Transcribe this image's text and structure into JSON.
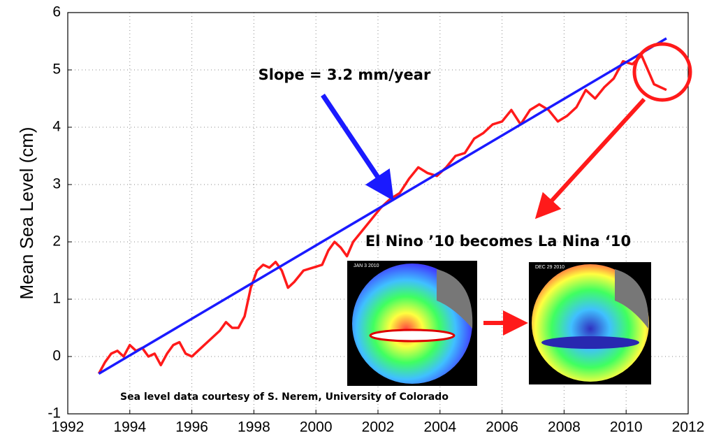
{
  "chart_data": {
    "type": "line",
    "ylabel": "Mean Sea Level (cm)",
    "annotations": [
      "Slope = 3.2 mm/year",
      "El Nino ’10 becomes La Nina ‘10",
      "Sea level data courtesy of S. Nerem, University of Colorado"
    ],
    "image_labels": [
      "JAN 3 2010",
      "DEC 29 2010"
    ],
    "xlim": [
      1992,
      2012
    ],
    "ylim": [
      -1,
      6
    ],
    "xticks": [
      1992,
      1994,
      1996,
      1998,
      2000,
      2002,
      2004,
      2006,
      2008,
      2010,
      2012
    ],
    "yticks": [
      -1,
      0,
      1,
      2,
      3,
      4,
      5,
      6
    ],
    "grid": true,
    "series": [
      {
        "color": "#ff1a1a",
        "x": [
          1993.0,
          1993.2,
          1993.4,
          1993.6,
          1993.8,
          1994.0,
          1994.2,
          1994.4,
          1994.6,
          1994.8,
          1995.0,
          1995.2,
          1995.4,
          1995.6,
          1995.8,
          1996.0,
          1996.3,
          1996.6,
          1996.9,
          1997.1,
          1997.3,
          1997.5,
          1997.7,
          1997.9,
          1998.1,
          1998.3,
          1998.5,
          1998.7,
          1998.9,
          1999.1,
          1999.3,
          1999.6,
          1999.9,
          2000.2,
          2000.4,
          2000.6,
          2000.8,
          2001.0,
          2001.2,
          2001.5,
          2001.8,
          2002.1,
          2002.4,
          2002.7,
          2003.0,
          2003.3,
          2003.6,
          2003.9,
          2004.2,
          2004.5,
          2004.8,
          2005.1,
          2005.4,
          2005.7,
          2006.0,
          2006.3,
          2006.6,
          2006.9,
          2007.2,
          2007.5,
          2007.8,
          2008.1,
          2008.4,
          2008.7,
          2009.0,
          2009.3,
          2009.6,
          2009.9,
          2010.2,
          2010.5,
          2010.7,
          2010.9,
          2011.1,
          2011.3
        ],
        "values": [
          -0.3,
          -0.1,
          0.05,
          0.1,
          0.0,
          0.2,
          0.1,
          0.15,
          0.0,
          0.05,
          -0.15,
          0.05,
          0.2,
          0.25,
          0.05,
          0.0,
          0.15,
          0.3,
          0.45,
          0.6,
          0.5,
          0.5,
          0.7,
          1.2,
          1.5,
          1.6,
          1.55,
          1.65,
          1.5,
          1.2,
          1.3,
          1.5,
          1.55,
          1.6,
          1.85,
          2.0,
          1.9,
          1.75,
          2.0,
          2.2,
          2.4,
          2.6,
          2.75,
          2.85,
          3.1,
          3.3,
          3.2,
          3.15,
          3.3,
          3.5,
          3.55,
          3.8,
          3.9,
          4.05,
          4.1,
          4.3,
          4.05,
          4.3,
          4.4,
          4.3,
          4.1,
          4.2,
          4.35,
          4.65,
          4.5,
          4.7,
          4.85,
          5.15,
          5.1,
          5.25,
          5.0,
          4.75,
          4.7,
          4.65
        ]
      },
      {
        "color": "#1a1aff",
        "x": [
          1993.0,
          2011.3
        ],
        "values": [
          -0.3,
          5.55
        ]
      }
    ]
  }
}
